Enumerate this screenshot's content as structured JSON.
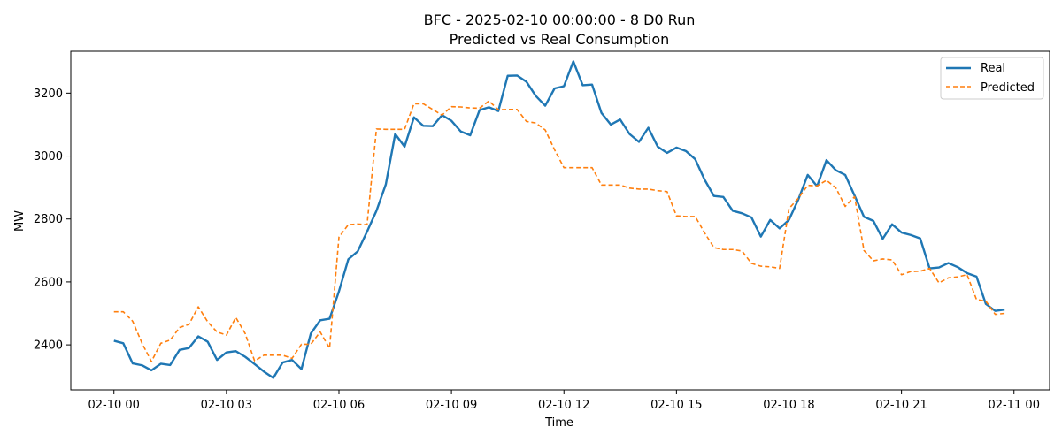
{
  "chart_data": {
    "type": "line",
    "title": "BFC - 2025-02-10 00:00:00 - 8 D0 Run",
    "subtitle": "Predicted vs Real Consumption",
    "xlabel": "Time",
    "ylabel": "MW",
    "x_unit": "hours since 02-10 00",
    "xlim": [
      -1.15,
      24.95
    ],
    "ylim": [
      2257,
      3333
    ],
    "x_ticks": [
      {
        "hour": 0,
        "label": "02-10 00"
      },
      {
        "hour": 3,
        "label": "02-10 03"
      },
      {
        "hour": 6,
        "label": "02-10 06"
      },
      {
        "hour": 9,
        "label": "02-10 09"
      },
      {
        "hour": 12,
        "label": "02-10 12"
      },
      {
        "hour": 15,
        "label": "02-10 15"
      },
      {
        "hour": 18,
        "label": "02-10 18"
      },
      {
        "hour": 21,
        "label": "02-10 21"
      },
      {
        "hour": 24,
        "label": "02-11 00"
      }
    ],
    "y_ticks": [
      2400,
      2600,
      2800,
      3000,
      3200
    ],
    "grid": false,
    "legend": "top-right",
    "x": [
      0,
      0.25,
      0.5,
      0.75,
      1,
      1.25,
      1.5,
      1.75,
      2,
      2.25,
      2.5,
      2.75,
      3,
      3.25,
      3.5,
      3.75,
      4,
      4.25,
      4.5,
      4.75,
      5,
      5.25,
      5.5,
      5.75,
      6,
      6.25,
      6.5,
      6.75,
      7,
      7.25,
      7.5,
      7.75,
      8,
      8.25,
      8.5,
      8.75,
      9,
      9.25,
      9.5,
      9.75,
      10,
      10.25,
      10.5,
      10.75,
      11,
      11.25,
      11.5,
      11.75,
      12,
      12.25,
      12.5,
      12.75,
      13,
      13.25,
      13.5,
      13.75,
      14,
      14.25,
      14.5,
      14.75,
      15,
      15.25,
      15.5,
      15.75,
      16,
      16.25,
      16.5,
      16.75,
      17,
      17.25,
      17.5,
      17.75,
      18,
      18.25,
      18.5,
      18.75,
      19,
      19.25,
      19.5,
      19.75,
      20,
      20.25,
      20.5,
      20.75,
      21,
      21.25,
      21.5,
      21.75,
      22,
      22.25,
      22.5,
      22.75,
      23,
      23.25,
      23.5,
      23.75
    ],
    "series": [
      {
        "name": "Real",
        "color": "#1f77b4",
        "style": "solid",
        "values": [
          2413,
          2405,
          2341,
          2335,
          2319,
          2340,
          2336,
          2384,
          2390,
          2427,
          2410,
          2352,
          2376,
          2380,
          2362,
          2339,
          2315,
          2295,
          2344,
          2352,
          2323,
          2436,
          2478,
          2483,
          2570,
          2672,
          2697,
          2760,
          2826,
          2910,
          3070,
          3030,
          3123,
          3096,
          3095,
          3130,
          3112,
          3078,
          3066,
          3146,
          3155,
          3143,
          3255,
          3256,
          3236,
          3191,
          3160,
          3215,
          3222,
          3301,
          3225,
          3227,
          3137,
          3100,
          3116,
          3070,
          3045,
          3090,
          3030,
          3010,
          3027,
          3016,
          2990,
          2925,
          2873,
          2870,
          2826,
          2818,
          2805,
          2744,
          2797,
          2770,
          2797,
          2862,
          2940,
          2904,
          2987,
          2955,
          2940,
          2874,
          2807,
          2794,
          2737,
          2783,
          2757,
          2749,
          2738,
          2643,
          2646,
          2660,
          2647,
          2628,
          2617,
          2530,
          2508,
          2512
        ]
      },
      {
        "name": "Predicted",
        "color": "#ff7f0e",
        "style": "dashed",
        "values": [
          2505,
          2505,
          2475,
          2405,
          2347,
          2405,
          2415,
          2455,
          2465,
          2521,
          2473,
          2441,
          2431,
          2487,
          2436,
          2349,
          2367,
          2367,
          2367,
          2357,
          2402,
          2402,
          2441,
          2389,
          2742,
          2782,
          2784,
          2782,
          3086,
          3085,
          3085,
          3085,
          3166,
          3166,
          3148,
          3130,
          3157,
          3156,
          3153,
          3152,
          3175,
          3147,
          3148,
          3148,
          3110,
          3105,
          3083,
          3020,
          2963,
          2963,
          2963,
          2963,
          2908,
          2908,
          2908,
          2898,
          2895,
          2895,
          2890,
          2887,
          2810,
          2808,
          2808,
          2756,
          2709,
          2703,
          2703,
          2698,
          2659,
          2650,
          2648,
          2643,
          2833,
          2866,
          2907,
          2905,
          2923,
          2899,
          2840,
          2871,
          2700,
          2667,
          2673,
          2670,
          2623,
          2633,
          2634,
          2643,
          2597,
          2613,
          2616,
          2623,
          2544,
          2539,
          2497,
          2500
        ]
      }
    ]
  }
}
